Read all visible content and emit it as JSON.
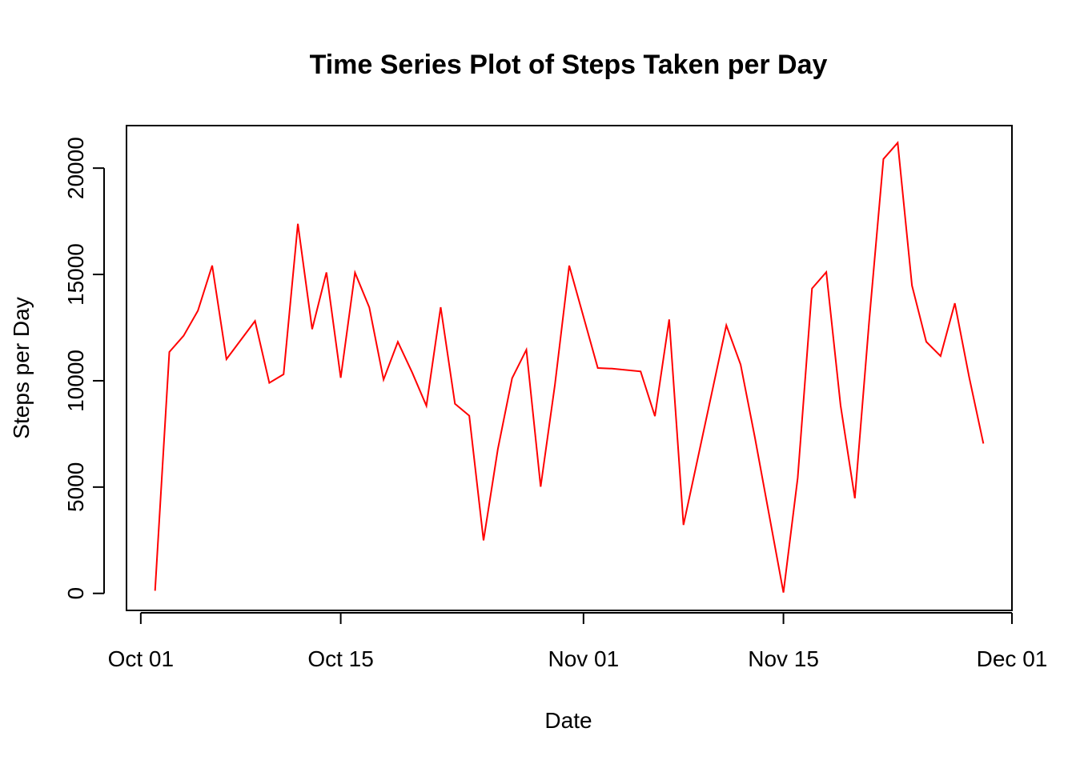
{
  "chart_data": {
    "type": "line",
    "title": "Time Series Plot of Steps Taken per Day",
    "xlabel": "Date",
    "ylabel": "Steps per Day",
    "x_tick_labels": [
      "Oct 01",
      "Oct 15",
      "Nov 01",
      "Nov 15",
      "Dec 01"
    ],
    "x_tick_dates": [
      "2012-10-01",
      "2012-10-15",
      "2012-11-01",
      "2012-11-15",
      "2012-12-01"
    ],
    "y_ticks": [
      0,
      5000,
      10000,
      15000,
      20000
    ],
    "y_tick_labels": [
      "0",
      "5000",
      "10000",
      "15000",
      "20000"
    ],
    "xlim": [
      "2012-09-30",
      "2012-12-01"
    ],
    "ylim": [
      -800,
      22000
    ],
    "grid": false,
    "box": true,
    "series": [
      {
        "color": "#ff0000",
        "x": [
          "2012-10-02",
          "2012-10-03",
          "2012-10-04",
          "2012-10-05",
          "2012-10-06",
          "2012-10-07",
          "2012-10-09",
          "2012-10-10",
          "2012-10-11",
          "2012-10-12",
          "2012-10-13",
          "2012-10-14",
          "2012-10-15",
          "2012-10-16",
          "2012-10-17",
          "2012-10-18",
          "2012-10-19",
          "2012-10-20",
          "2012-10-21",
          "2012-10-22",
          "2012-10-23",
          "2012-10-24",
          "2012-10-25",
          "2012-10-26",
          "2012-10-27",
          "2012-10-28",
          "2012-10-29",
          "2012-10-30",
          "2012-10-31",
          "2012-11-02",
          "2012-11-03",
          "2012-11-05",
          "2012-11-06",
          "2012-11-07",
          "2012-11-08",
          "2012-11-11",
          "2012-11-12",
          "2012-11-13",
          "2012-11-15",
          "2012-11-16",
          "2012-11-17",
          "2012-11-18",
          "2012-11-19",
          "2012-11-20",
          "2012-11-21",
          "2012-11-22",
          "2012-11-23",
          "2012-11-24",
          "2012-11-25",
          "2012-11-26",
          "2012-11-27",
          "2012-11-28",
          "2012-11-29"
        ],
        "y": [
          126,
          11352,
          12116,
          13294,
          15420,
          11015,
          12811,
          9900,
          10304,
          17382,
          12426,
          15098,
          10139,
          15084,
          13452,
          10056,
          11829,
          10395,
          8821,
          13460,
          8918,
          8355,
          2492,
          6778,
          10119,
          11458,
          5018,
          9819,
          15414,
          10600,
          10571,
          10439,
          8334,
          12883,
          3219,
          12608,
          10765,
          7336,
          41,
          5441,
          14339,
          15110,
          8841,
          4472,
          12787,
          20427,
          21194,
          14478,
          11834,
          11162,
          13646,
          10183,
          7047
        ]
      }
    ]
  }
}
